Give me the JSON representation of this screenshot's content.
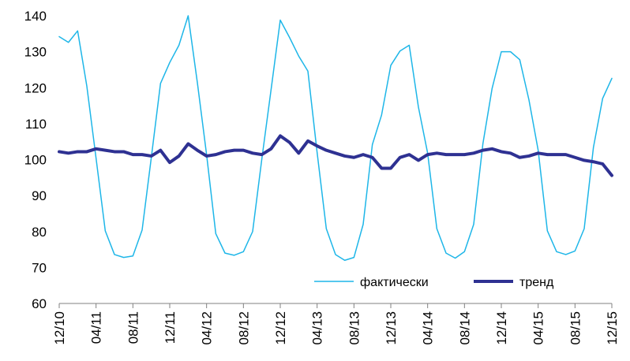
{
  "chart_data": {
    "type": "line",
    "title": "",
    "xlabel": "",
    "ylabel": "",
    "ylim": [
      60,
      140
    ],
    "y_ticks": [
      60,
      70,
      80,
      90,
      100,
      110,
      120,
      130,
      140
    ],
    "grid": false,
    "legend_position": "bottom-right",
    "x_tick_labels": [
      "12/10",
      "04/11",
      "08/11",
      "12/11",
      "04/12",
      "08/12",
      "12/12",
      "04/13",
      "08/13",
      "12/13",
      "04/14",
      "08/14",
      "12/14",
      "04/15",
      "08/15",
      "12/15"
    ],
    "x": [
      "12/10",
      "01/11",
      "02/11",
      "03/11",
      "04/11",
      "05/11",
      "06/11",
      "07/11",
      "08/11",
      "09/11",
      "10/11",
      "11/11",
      "12/11",
      "01/12",
      "02/12",
      "03/12",
      "04/12",
      "05/12",
      "06/12",
      "07/12",
      "08/12",
      "09/12",
      "10/12",
      "11/12",
      "12/12",
      "01/13",
      "02/13",
      "03/13",
      "04/13",
      "05/13",
      "06/13",
      "07/13",
      "08/13",
      "09/13",
      "10/13",
      "11/13",
      "12/13",
      "01/14",
      "02/14",
      "03/14",
      "04/14",
      "05/14",
      "06/14",
      "07/14",
      "08/14",
      "09/14",
      "10/14",
      "11/14",
      "12/14",
      "01/15",
      "02/15",
      "03/15",
      "04/15",
      "05/15",
      "06/15",
      "07/15",
      "08/15",
      "09/15",
      "10/15",
      "11/15",
      "12/15"
    ],
    "series": [
      {
        "name": "фактически",
        "color": "#1EB6E8",
        "line_width": "thin",
        "values": [
          134.2,
          132.6,
          135.8,
          120.4,
          100.4,
          80.2,
          73.6,
          72.8,
          73.2,
          80.4,
          100.6,
          121.2,
          127.0,
          131.8,
          140.0,
          121.4,
          101.4,
          79.4,
          74.0,
          73.4,
          74.4,
          80.0,
          100.2,
          119.4,
          138.8,
          134.0,
          128.8,
          124.6,
          102.0,
          80.8,
          73.6,
          72.0,
          72.8,
          82.0,
          104.2,
          112.4,
          126.2,
          130.2,
          131.8,
          114.6,
          101.8,
          80.8,
          74.0,
          72.6,
          74.4,
          82.0,
          104.4,
          119.8,
          130.0,
          130.0,
          127.8,
          116.6,
          102.6,
          80.2,
          74.4,
          73.6,
          74.6,
          80.8,
          103.4,
          117.0,
          122.6
        ]
      },
      {
        "name": "тренд",
        "color": "#2E3192",
        "line_width": "thick",
        "values": [
          102.2,
          101.8,
          102.2,
          102.2,
          103.0,
          102.6,
          102.2,
          102.2,
          101.4,
          101.4,
          101.0,
          102.6,
          99.2,
          101.0,
          104.4,
          102.6,
          101.0,
          101.4,
          102.2,
          102.6,
          102.6,
          101.8,
          101.4,
          103.0,
          106.6,
          104.8,
          101.8,
          105.2,
          103.8,
          102.6,
          101.8,
          101.0,
          100.6,
          101.4,
          100.6,
          97.6,
          97.6,
          100.6,
          101.4,
          99.8,
          101.4,
          101.8,
          101.4,
          101.4,
          101.4,
          101.8,
          102.6,
          103.0,
          102.2,
          101.8,
          100.6,
          101.0,
          101.8,
          101.4,
          101.4,
          101.4,
          100.6,
          99.8,
          99.4,
          98.8,
          95.6
        ]
      }
    ]
  }
}
